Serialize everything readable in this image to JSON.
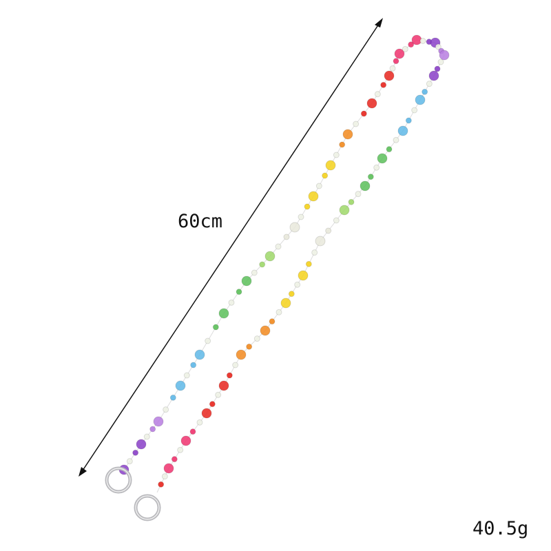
{
  "annotations": {
    "length": "60cm",
    "weight": "40.5g"
  },
  "product": {
    "name_icon": "beaded-chain-strap",
    "ring_color": "#c8c8cc",
    "arrow_color": "#111111",
    "bead_palette": [
      "#8a3fc8",
      "#b77ce0",
      "#5fb8e8",
      "#5cc05a",
      "#9fd86a",
      "#e9e9dc",
      "#f5d21c",
      "#f28a1e",
      "#e8261e",
      "#f0336e"
    ]
  }
}
